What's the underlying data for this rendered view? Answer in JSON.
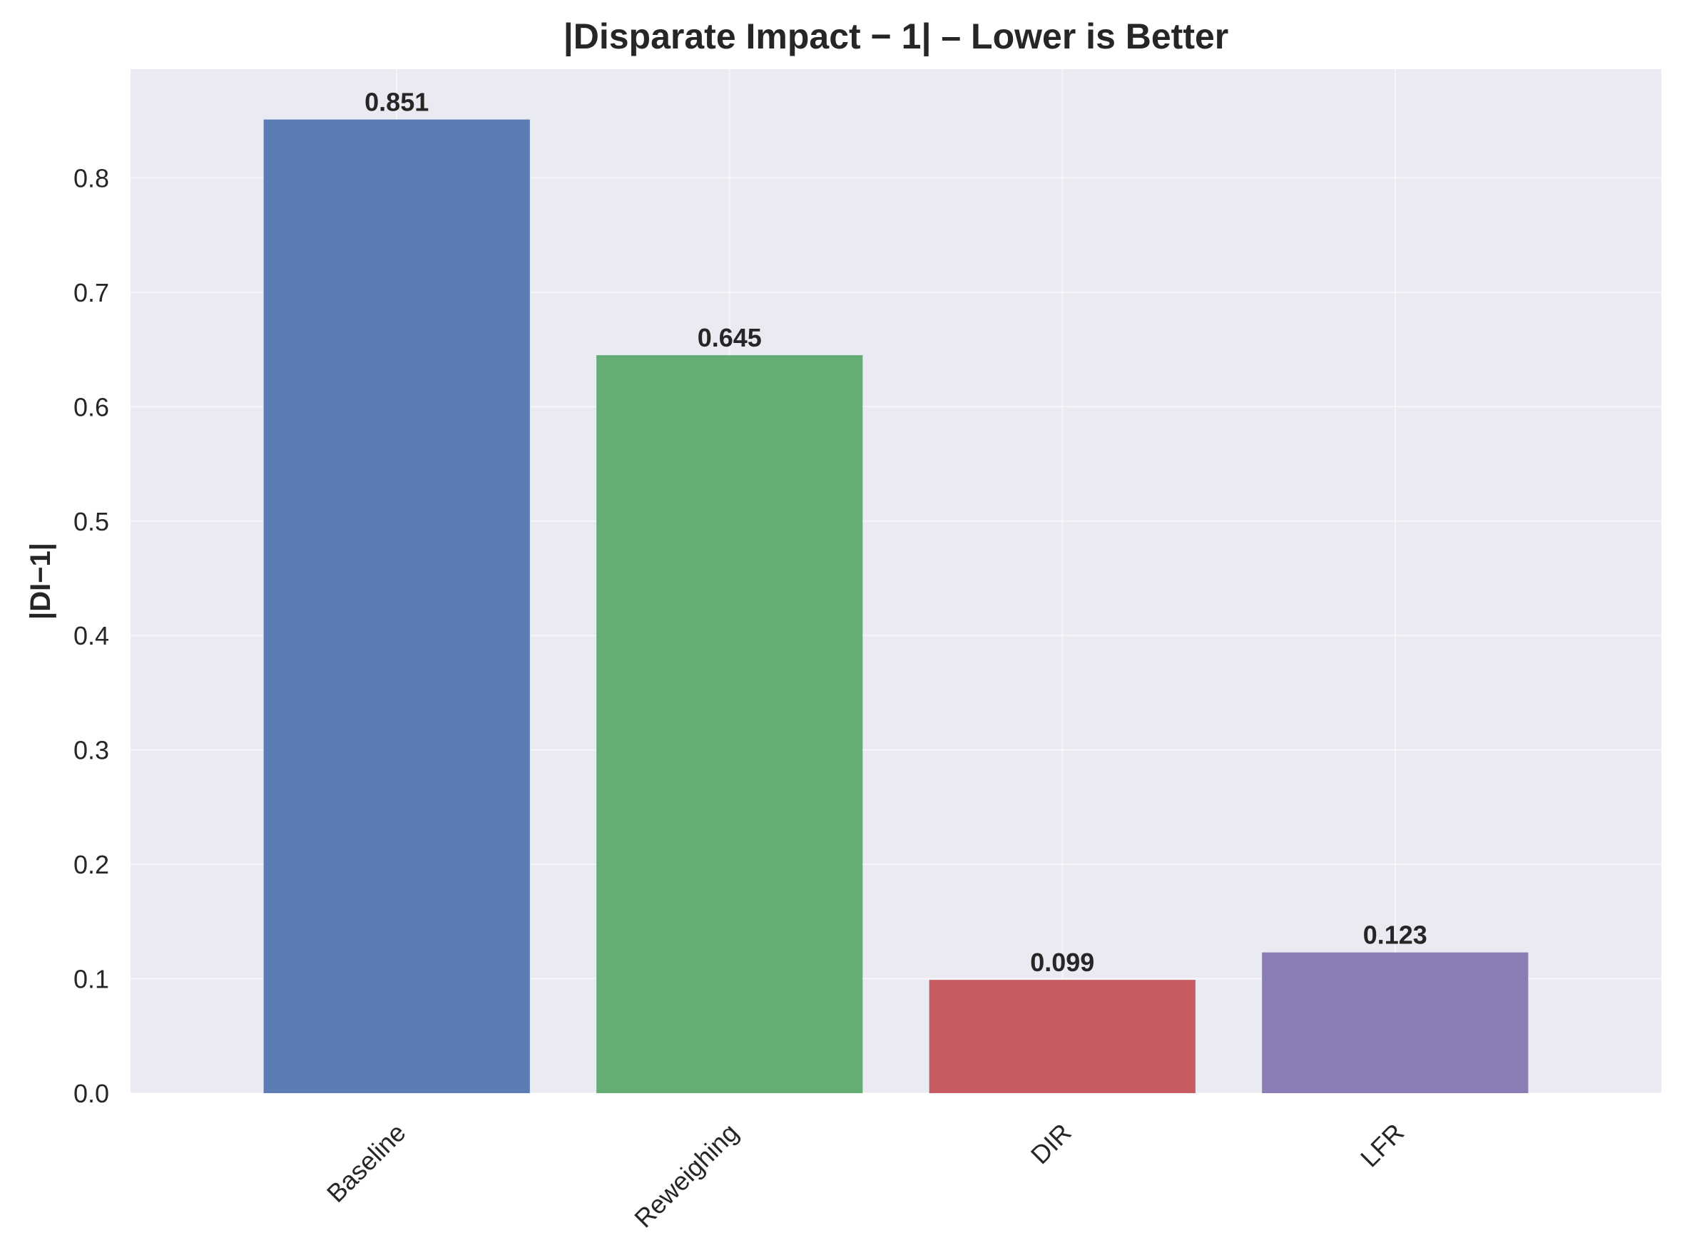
{
  "chart_data": {
    "type": "bar",
    "title": "|Disparate Impact − 1| – Lower is Better",
    "xlabel": "",
    "ylabel": "|DI−1|",
    "categories": [
      "Baseline",
      "Reweighing",
      "DIR",
      "LFR"
    ],
    "values": [
      0.851,
      0.645,
      0.099,
      0.123
    ],
    "value_labels": [
      "0.851",
      "0.645",
      "0.099",
      "0.123"
    ],
    "colors": [
      "#5b7db4",
      "#65ad75",
      "#c65b62",
      "#8a7db6"
    ],
    "ylim": [
      0,
      0.895
    ],
    "yticks": [
      0.0,
      0.1,
      0.2,
      0.3,
      0.4,
      0.5,
      0.6,
      0.7,
      0.8
    ],
    "ytick_labels": [
      "0.0",
      "0.1",
      "0.2",
      "0.3",
      "0.4",
      "0.5",
      "0.6",
      "0.7",
      "0.8"
    ],
    "grid": true,
    "background": "#eaeaf2",
    "grid_color": "#ffffff"
  }
}
